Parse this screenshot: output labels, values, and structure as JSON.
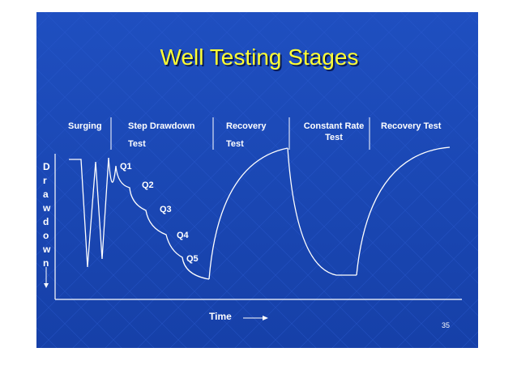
{
  "title": "Well Testing Stages",
  "stages": [
    [
      "Surging"
    ],
    [
      "Step Drawdown",
      "Test"
    ],
    [
      "Recovery",
      "Test"
    ],
    [
      "Constant Rate",
      "Test"
    ],
    [
      "Recovery Test"
    ]
  ],
  "y_axis_label": [
    "D",
    "r",
    "a",
    "w",
    "d",
    "o",
    "w",
    "n"
  ],
  "steps": [
    "Q1",
    "Q2",
    "Q3",
    "Q4",
    "Q5"
  ],
  "x_axis_label": "Time",
  "page_number": "35"
}
